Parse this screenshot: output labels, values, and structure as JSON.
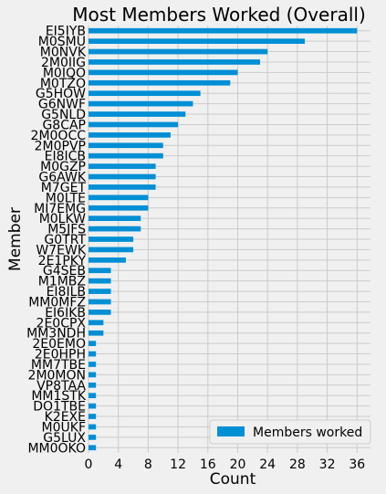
{
  "chart_data": {
    "type": "bar",
    "orientation": "horizontal",
    "title": "Most Members Worked (Overall)",
    "xlabel": "Count",
    "ylabel": "Member",
    "xlim": [
      0,
      37.8
    ],
    "xticks": [
      0,
      4,
      8,
      12,
      16,
      20,
      24,
      28,
      32,
      36
    ],
    "grid": true,
    "legend": {
      "position": "bottom-right",
      "entries": [
        "Members worked"
      ]
    },
    "colors": {
      "bar": "#008fd5",
      "background": "#f0f0f0",
      "grid": "#cbcbcb"
    },
    "categories": [
      "EI5IYB",
      "M0SMU",
      "M0NVK",
      "2M0IIG",
      "M0IQO",
      "M0TZO",
      "G5HOW",
      "G6NWF",
      "G5NLD",
      "G8CAP",
      "2M0OCC",
      "2M0PVP",
      "EI8ICB",
      "M0GZP",
      "G6AWK",
      "M7GET",
      "M0LTE",
      "MI7EMG",
      "M0LKW",
      "M5JFS",
      "G0TRT",
      "W7EWK",
      "2E1PKY",
      "G4SEB",
      "M1MBZ",
      "EI8ILB",
      "MM0MFZ",
      "EI6IKB",
      "2E0CPX",
      "MM3NDH",
      "2E0EMO",
      "2E0HPH",
      "MM7TBE",
      "2M0MON",
      "VP8TAA",
      "MM1STK",
      "DO1TBE",
      "K2EXE",
      "M0UKF",
      "G5LUX",
      "MM0OKO"
    ],
    "series": [
      {
        "name": "Members worked",
        "values": [
          36,
          29,
          24,
          23,
          20,
          19,
          15,
          14,
          13,
          12,
          11,
          10,
          10,
          9,
          9,
          9,
          8,
          8,
          7,
          7,
          6,
          6,
          5,
          3,
          3,
          3,
          3,
          3,
          2,
          2,
          1,
          1,
          1,
          1,
          1,
          1,
          1,
          1,
          1,
          1,
          1
        ]
      }
    ]
  }
}
